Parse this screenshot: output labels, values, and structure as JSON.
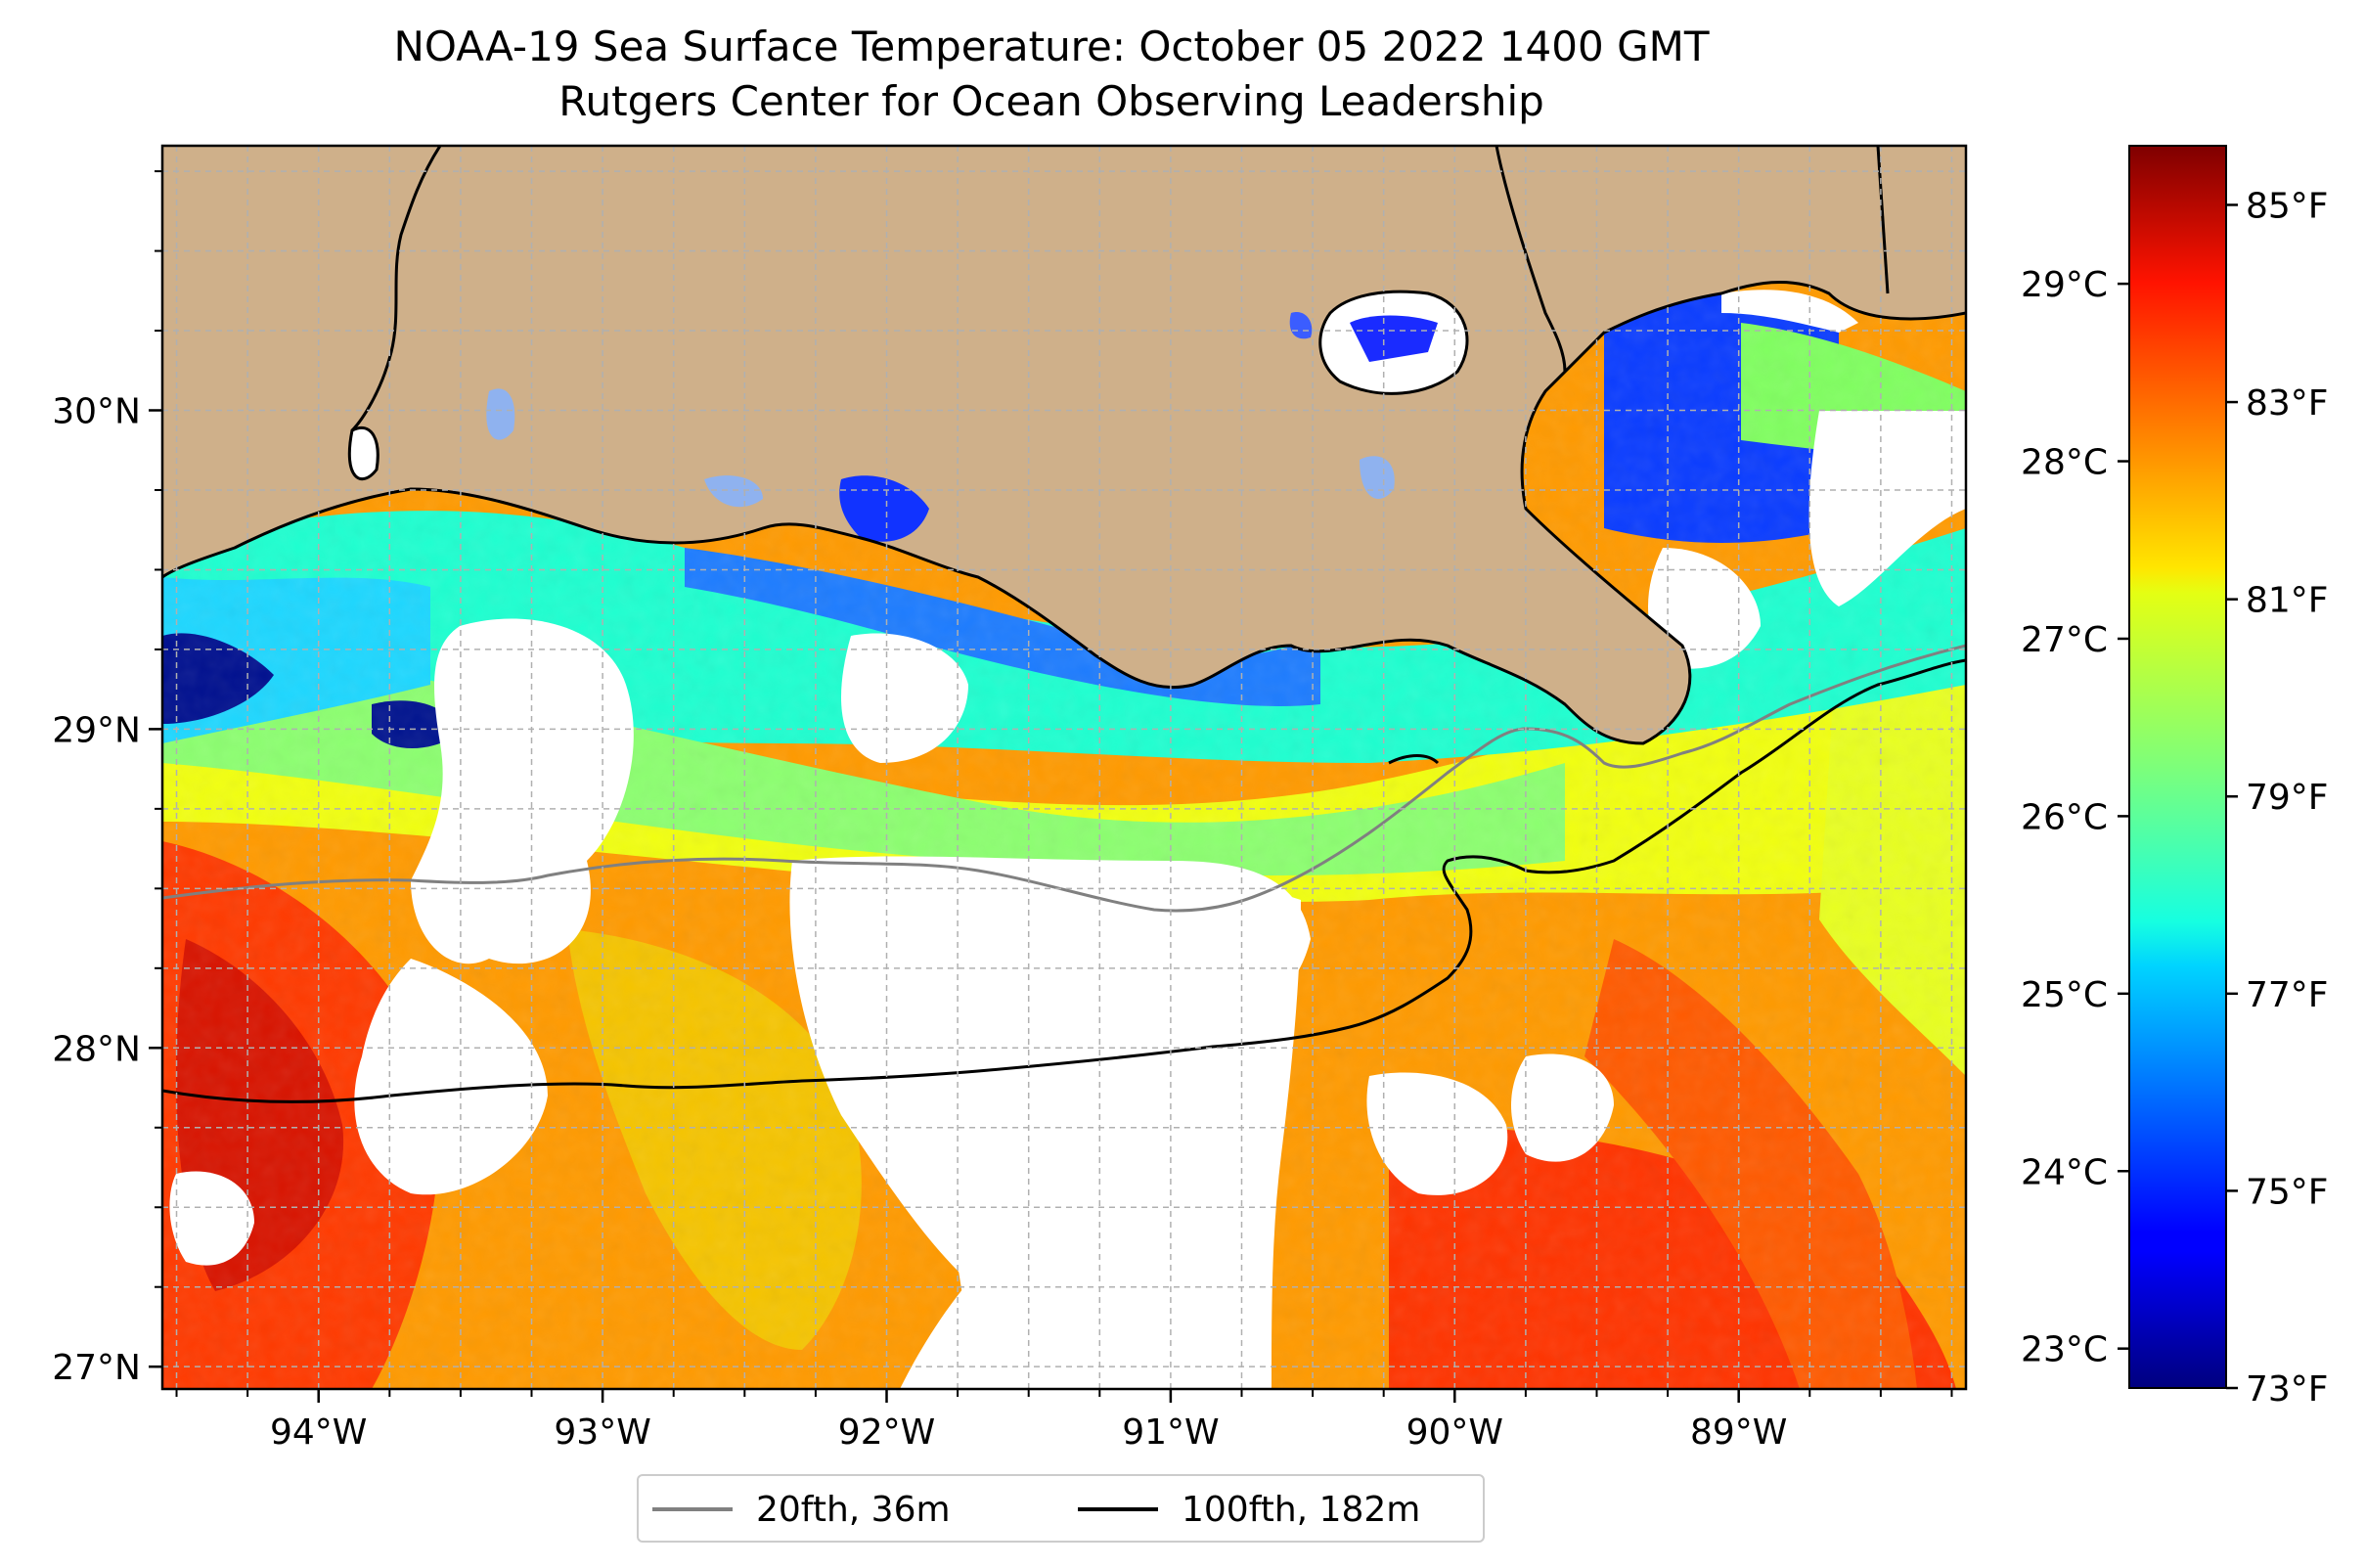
{
  "title": "NOAA-19 Sea Surface Temperature: October 05 2022 1400 GMT",
  "subtitle": "Rutgers Center for Ocean Observing Leadership",
  "map": {
    "lon_range": [
      -94.55,
      -88.2
    ],
    "lat_range": [
      26.93,
      30.83
    ],
    "x_ticks": [
      {
        "value": -94,
        "label": "94°W"
      },
      {
        "value": -93,
        "label": "93°W"
      },
      {
        "value": -92,
        "label": "92°W"
      },
      {
        "value": -91,
        "label": "91°W"
      },
      {
        "value": -90,
        "label": "90°W"
      },
      {
        "value": -89,
        "label": "89°W"
      }
    ],
    "y_ticks": [
      {
        "value": 27,
        "label": "27°N"
      },
      {
        "value": 28,
        "label": "28°N"
      },
      {
        "value": 29,
        "label": "29°N"
      },
      {
        "value": 30,
        "label": "30°N"
      }
    ],
    "grid": true,
    "land_color": "#cfb08a",
    "colors": {
      "land": "#cfb08a",
      "cloud": "#ffffff",
      "coast": "#000000"
    }
  },
  "colorbar": {
    "colormap": "jet",
    "range_f": [
      73,
      85.6
    ],
    "celsius_ticks": [
      {
        "value": 23,
        "label": "23°C"
      },
      {
        "value": 24,
        "label": "24°C"
      },
      {
        "value": 25,
        "label": "25°C"
      },
      {
        "value": 26,
        "label": "26°C"
      },
      {
        "value": 27,
        "label": "27°C"
      },
      {
        "value": 28,
        "label": "28°C"
      },
      {
        "value": 29,
        "label": "29°C"
      }
    ],
    "fahrenheit_ticks": [
      {
        "value": 73,
        "label": "73°F"
      },
      {
        "value": 75,
        "label": "75°F"
      },
      {
        "value": 77,
        "label": "77°F"
      },
      {
        "value": 79,
        "label": "79°F"
      },
      {
        "value": 81,
        "label": "81°F"
      },
      {
        "value": 83,
        "label": "83°F"
      },
      {
        "value": 85,
        "label": "85°F"
      }
    ]
  },
  "legend": {
    "items": [
      {
        "label": "20fth, 36m",
        "color": "#808080"
      },
      {
        "label": "100fth, 182m",
        "color": "#000000"
      }
    ]
  }
}
